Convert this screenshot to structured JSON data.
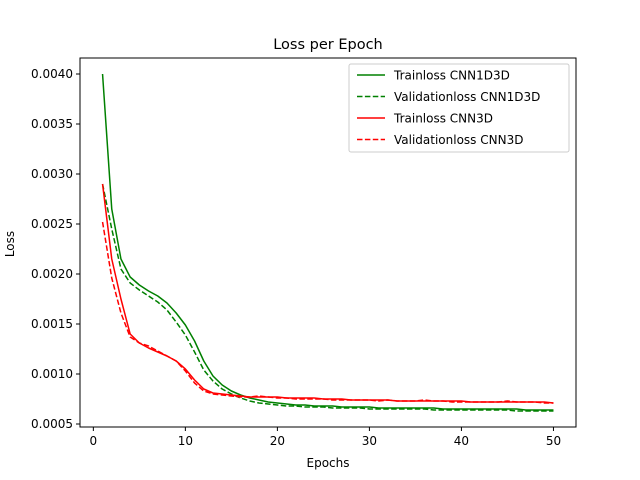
{
  "chart_data": {
    "type": "line",
    "title": "Loss per Epoch",
    "xlabel": "Epochs",
    "ylabel": "Loss",
    "xlim": [
      -1.45,
      52.45
    ],
    "ylim": [
      0.00047,
      0.00416
    ],
    "xticks": [
      0,
      10,
      20,
      30,
      40,
      50
    ],
    "xtick_labels": [
      "0",
      "10",
      "20",
      "30",
      "40",
      "50"
    ],
    "yticks": [
      0.0005,
      0.001,
      0.0015,
      0.002,
      0.0025,
      0.003,
      0.0035,
      0.004
    ],
    "ytick_labels": [
      "0.0005",
      "0.0010",
      "0.0015",
      "0.0020",
      "0.0025",
      "0.0030",
      "0.0035",
      "0.0040"
    ],
    "grid": false,
    "legend_position": "top-right",
    "x": [
      1,
      2,
      3,
      4,
      5,
      6,
      7,
      8,
      9,
      10,
      11,
      12,
      13,
      14,
      15,
      16,
      17,
      18,
      19,
      20,
      21,
      22,
      23,
      24,
      25,
      26,
      27,
      28,
      29,
      30,
      31,
      32,
      33,
      34,
      35,
      36,
      37,
      38,
      39,
      40,
      41,
      42,
      43,
      44,
      45,
      46,
      47,
      48,
      49,
      50
    ],
    "series": [
      {
        "name": "Trainloss CNN1D3D",
        "color": "#008000",
        "style": "solid",
        "values": [
          0.004,
          0.00265,
          0.00215,
          0.00197,
          0.00189,
          0.00183,
          0.00178,
          0.00171,
          0.00161,
          0.00149,
          0.00133,
          0.00113,
          0.00098,
          0.00089,
          0.00083,
          0.00079,
          0.00076,
          0.00074,
          0.00072,
          0.00071,
          0.0007,
          0.00069,
          0.00069,
          0.00068,
          0.00068,
          0.00068,
          0.00067,
          0.00067,
          0.00067,
          0.00067,
          0.00066,
          0.00066,
          0.00066,
          0.00066,
          0.00066,
          0.00066,
          0.00066,
          0.00065,
          0.00065,
          0.00065,
          0.00065,
          0.00065,
          0.00065,
          0.00065,
          0.00065,
          0.00065,
          0.00064,
          0.00064,
          0.00064,
          0.00064
        ]
      },
      {
        "name": "Validationloss CNN1D3D",
        "color": "#008000",
        "style": "dashed",
        "values": [
          0.0029,
          0.00245,
          0.00205,
          0.00191,
          0.00184,
          0.00178,
          0.00172,
          0.00164,
          0.00152,
          0.00139,
          0.00122,
          0.00104,
          0.00093,
          0.00085,
          0.0008,
          0.00076,
          0.00073,
          0.00071,
          0.0007,
          0.00069,
          0.00068,
          0.00068,
          0.00067,
          0.00067,
          0.00067,
          0.00066,
          0.00066,
          0.00066,
          0.00066,
          0.00065,
          0.00065,
          0.00065,
          0.00065,
          0.00065,
          0.00065,
          0.00065,
          0.00064,
          0.00064,
          0.00064,
          0.00064,
          0.00064,
          0.00064,
          0.00064,
          0.00064,
          0.00064,
          0.00063,
          0.00063,
          0.00063,
          0.00063,
          0.00063
        ]
      },
      {
        "name": "Trainloss CNN3D",
        "color": "#ff0000",
        "style": "solid",
        "values": [
          0.0029,
          0.00215,
          0.00175,
          0.0014,
          0.00131,
          0.00126,
          0.00122,
          0.00118,
          0.00113,
          0.00105,
          0.00094,
          0.00085,
          0.00081,
          0.0008,
          0.00079,
          0.00078,
          0.00077,
          0.00077,
          0.00077,
          0.00077,
          0.00076,
          0.00076,
          0.00076,
          0.00076,
          0.00075,
          0.00075,
          0.00075,
          0.00074,
          0.00074,
          0.00074,
          0.00074,
          0.00074,
          0.00073,
          0.00073,
          0.00073,
          0.00073,
          0.00073,
          0.00073,
          0.00073,
          0.00073,
          0.00072,
          0.00072,
          0.00072,
          0.00072,
          0.00072,
          0.00072,
          0.00072,
          0.00072,
          0.00072,
          0.00071
        ]
      },
      {
        "name": "Validationloss CNN3D",
        "color": "#ff0000",
        "style": "dashed",
        "values": [
          0.00252,
          0.00196,
          0.00161,
          0.00137,
          0.00131,
          0.00128,
          0.00123,
          0.00118,
          0.00113,
          0.00103,
          0.00091,
          0.00083,
          0.0008,
          0.00079,
          0.00078,
          0.00077,
          0.00077,
          0.00078,
          0.00077,
          0.00076,
          0.00076,
          0.00075,
          0.00075,
          0.00075,
          0.00075,
          0.00074,
          0.00074,
          0.00074,
          0.00074,
          0.00074,
          0.00073,
          0.00074,
          0.00073,
          0.00073,
          0.00073,
          0.00074,
          0.00073,
          0.00073,
          0.00072,
          0.00072,
          0.00072,
          0.00072,
          0.00072,
          0.00072,
          0.00073,
          0.00072,
          0.00072,
          0.00072,
          0.00071,
          0.00071
        ]
      }
    ]
  }
}
